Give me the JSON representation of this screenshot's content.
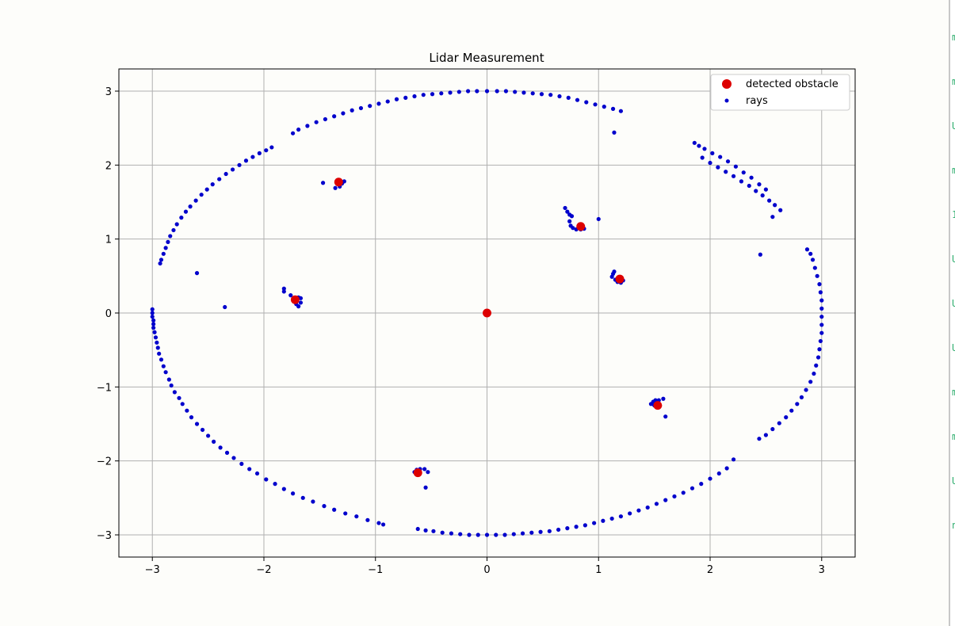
{
  "chart_data": {
    "type": "scatter",
    "title": "Lidar Measurement",
    "xlabel": "",
    "ylabel": "",
    "xlim": [
      -3.3,
      3.3
    ],
    "ylim": [
      -3.3,
      3.3
    ],
    "xticks": [
      -3,
      -2,
      -1,
      0,
      1,
      2,
      3
    ],
    "yticks": [
      -3,
      -2,
      -1,
      0,
      1,
      2,
      3
    ],
    "xtick_labels": [
      "−3",
      "−2",
      "−1",
      "0",
      "1",
      "2",
      "3"
    ],
    "ytick_labels": [
      "−3",
      "−2",
      "−1",
      "0",
      "1",
      "2",
      "3"
    ],
    "grid": true,
    "legend_position": "upper right",
    "series": [
      {
        "name": "detected obstacle",
        "color": "#dd0000",
        "marker": "large-circle",
        "points": [
          [
            0.0,
            0.0
          ],
          [
            -1.33,
            1.77
          ],
          [
            0.84,
            1.17
          ],
          [
            1.19,
            0.46
          ],
          [
            -1.72,
            0.18
          ],
          [
            1.53,
            -1.25
          ],
          [
            -0.62,
            -2.16
          ]
        ]
      },
      {
        "name": "rays",
        "color": "#0000cc",
        "marker": "small-circle",
        "points": [
          [
            -3.0,
            0.05
          ],
          [
            -3.0,
            0.0
          ],
          [
            -3.0,
            -0.05
          ],
          [
            -2.99,
            -0.1
          ],
          [
            -2.99,
            -0.15
          ],
          [
            -2.99,
            -0.2
          ],
          [
            -2.98,
            -0.26
          ],
          [
            -2.97,
            -0.33
          ],
          [
            -2.96,
            -0.4
          ],
          [
            -2.95,
            -0.47
          ],
          [
            -2.94,
            -0.55
          ],
          [
            -2.92,
            -0.63
          ],
          [
            -2.9,
            -0.72
          ],
          [
            -2.88,
            -0.8
          ],
          [
            -2.85,
            -0.9
          ],
          [
            -2.83,
            -0.98
          ],
          [
            -2.8,
            -1.07
          ],
          [
            -2.76,
            -1.15
          ],
          [
            -2.73,
            -1.23
          ],
          [
            -2.69,
            -1.32
          ],
          [
            -2.65,
            -1.41
          ],
          [
            -2.6,
            -1.5
          ],
          [
            -2.55,
            -1.58
          ],
          [
            -2.5,
            -1.66
          ],
          [
            -2.45,
            -1.74
          ],
          [
            -2.39,
            -1.82
          ],
          [
            -2.33,
            -1.89
          ],
          [
            -2.27,
            -1.96
          ],
          [
            -2.2,
            -2.04
          ],
          [
            -2.13,
            -2.11
          ],
          [
            -2.06,
            -2.17
          ],
          [
            -1.98,
            -2.25
          ],
          [
            -1.9,
            -2.31
          ],
          [
            -1.82,
            -2.38
          ],
          [
            -1.74,
            -2.44
          ],
          [
            -1.65,
            -2.5
          ],
          [
            -1.56,
            -2.55
          ],
          [
            -1.46,
            -2.61
          ],
          [
            -1.37,
            -2.66
          ],
          [
            -1.27,
            -2.71
          ],
          [
            -1.17,
            -2.75
          ],
          [
            -1.07,
            -2.8
          ],
          [
            -0.97,
            -2.84
          ],
          [
            -0.93,
            -2.86
          ],
          [
            -0.62,
            -2.92
          ],
          [
            -0.55,
            -2.94
          ],
          [
            -0.48,
            -2.95
          ],
          [
            -0.4,
            -2.97
          ],
          [
            -0.32,
            -2.98
          ],
          [
            -0.24,
            -2.99
          ],
          [
            -0.16,
            -3.0
          ],
          [
            -0.08,
            -3.0
          ],
          [
            0.0,
            -3.0
          ],
          [
            0.08,
            -3.0
          ],
          [
            0.16,
            -3.0
          ],
          [
            0.24,
            -2.99
          ],
          [
            0.32,
            -2.98
          ],
          [
            0.4,
            -2.97
          ],
          [
            0.48,
            -2.96
          ],
          [
            0.56,
            -2.95
          ],
          [
            0.64,
            -2.93
          ],
          [
            0.72,
            -2.91
          ],
          [
            0.8,
            -2.89
          ],
          [
            0.88,
            -2.87
          ],
          [
            0.96,
            -2.84
          ],
          [
            1.04,
            -2.81
          ],
          [
            1.12,
            -2.78
          ],
          [
            1.2,
            -2.75
          ],
          [
            1.28,
            -2.71
          ],
          [
            1.36,
            -2.67
          ],
          [
            1.44,
            -2.63
          ],
          [
            1.52,
            -2.58
          ],
          [
            1.6,
            -2.53
          ],
          [
            1.68,
            -2.48
          ],
          [
            1.76,
            -2.43
          ],
          [
            1.84,
            -2.37
          ],
          [
            1.92,
            -2.31
          ],
          [
            2.0,
            -2.24
          ],
          [
            2.08,
            -2.17
          ],
          [
            2.15,
            -2.1
          ],
          [
            2.21,
            -1.98
          ],
          [
            2.44,
            -1.7
          ],
          [
            2.5,
            -1.65
          ],
          [
            2.56,
            -1.57
          ],
          [
            2.62,
            -1.49
          ],
          [
            2.68,
            -1.41
          ],
          [
            2.73,
            -1.32
          ],
          [
            2.78,
            -1.23
          ],
          [
            2.82,
            -1.14
          ],
          [
            2.86,
            -1.04
          ],
          [
            2.9,
            -0.93
          ],
          [
            2.93,
            -0.82
          ],
          [
            2.95,
            -0.71
          ],
          [
            2.97,
            -0.6
          ],
          [
            2.98,
            -0.49
          ],
          [
            2.99,
            -0.38
          ],
          [
            3.0,
            -0.27
          ],
          [
            3.0,
            -0.16
          ],
          [
            3.0,
            -0.05
          ],
          [
            3.0,
            0.06
          ],
          [
            3.0,
            0.17
          ],
          [
            2.99,
            0.28
          ],
          [
            2.98,
            0.39
          ],
          [
            2.96,
            0.5
          ],
          [
            2.94,
            0.61
          ],
          [
            2.92,
            0.72
          ],
          [
            2.9,
            0.8
          ],
          [
            2.87,
            0.86
          ],
          [
            2.63,
            1.39
          ],
          [
            2.58,
            1.46
          ],
          [
            2.53,
            1.52
          ],
          [
            2.47,
            1.59
          ],
          [
            2.41,
            1.65
          ],
          [
            2.35,
            1.72
          ],
          [
            2.28,
            1.78
          ],
          [
            2.21,
            1.85
          ],
          [
            2.14,
            1.91
          ],
          [
            2.07,
            1.97
          ],
          [
            2.0,
            2.03
          ],
          [
            1.93,
            2.1
          ],
          [
            1.86,
            2.3
          ],
          [
            1.9,
            2.26
          ],
          [
            1.95,
            2.22
          ],
          [
            2.02,
            2.16
          ],
          [
            2.09,
            2.11
          ],
          [
            2.16,
            2.05
          ],
          [
            2.23,
            1.98
          ],
          [
            2.3,
            1.9
          ],
          [
            2.37,
            1.83
          ],
          [
            2.44,
            1.74
          ],
          [
            2.5,
            1.67
          ],
          [
            1.2,
            2.73
          ],
          [
            1.13,
            2.76
          ],
          [
            1.05,
            2.79
          ],
          [
            0.97,
            2.82
          ],
          [
            0.89,
            2.85
          ],
          [
            0.81,
            2.88
          ],
          [
            0.73,
            2.91
          ],
          [
            0.65,
            2.93
          ],
          [
            0.57,
            2.95
          ],
          [
            0.49,
            2.96
          ],
          [
            0.41,
            2.97
          ],
          [
            0.33,
            2.98
          ],
          [
            0.25,
            2.99
          ],
          [
            0.17,
            3.0
          ],
          [
            0.09,
            3.0
          ],
          [
            0.0,
            3.0
          ],
          [
            -0.09,
            3.0
          ],
          [
            -0.17,
            3.0
          ],
          [
            -0.25,
            2.99
          ],
          [
            -0.33,
            2.98
          ],
          [
            -0.41,
            2.97
          ],
          [
            -0.49,
            2.96
          ],
          [
            -0.57,
            2.95
          ],
          [
            -0.65,
            2.93
          ],
          [
            -0.73,
            2.91
          ],
          [
            -0.81,
            2.89
          ],
          [
            -0.89,
            2.86
          ],
          [
            -0.97,
            2.83
          ],
          [
            -1.05,
            2.8
          ],
          [
            -1.13,
            2.77
          ],
          [
            -1.21,
            2.74
          ],
          [
            -1.29,
            2.7
          ],
          [
            -1.37,
            2.66
          ],
          [
            -1.45,
            2.62
          ],
          [
            -1.53,
            2.58
          ],
          [
            -1.61,
            2.53
          ],
          [
            -1.69,
            2.48
          ],
          [
            -1.74,
            2.43
          ],
          [
            -1.93,
            2.24
          ],
          [
            -1.98,
            2.2
          ],
          [
            -2.04,
            2.16
          ],
          [
            -2.1,
            2.11
          ],
          [
            -2.16,
            2.06
          ],
          [
            -2.22,
            2.0
          ],
          [
            -2.28,
            1.94
          ],
          [
            -2.34,
            1.88
          ],
          [
            -2.4,
            1.81
          ],
          [
            -2.46,
            1.74
          ],
          [
            -2.51,
            1.67
          ],
          [
            -2.56,
            1.6
          ],
          [
            -2.61,
            1.52
          ],
          [
            -2.66,
            1.44
          ],
          [
            -2.7,
            1.37
          ],
          [
            -2.74,
            1.29
          ],
          [
            -2.78,
            1.2
          ],
          [
            -2.81,
            1.12
          ],
          [
            -2.84,
            1.04
          ],
          [
            -2.86,
            0.96
          ],
          [
            -2.88,
            0.88
          ],
          [
            -2.9,
            0.8
          ],
          [
            -2.92,
            0.72
          ],
          [
            -2.93,
            0.67
          ],
          [
            1.14,
            2.44
          ],
          [
            2.56,
            1.3
          ],
          [
            2.45,
            0.79
          ],
          [
            -2.6,
            0.54
          ],
          [
            -2.35,
            0.08
          ],
          [
            1.0,
            1.27
          ],
          [
            -1.47,
            1.76
          ],
          [
            -1.36,
            1.69
          ],
          [
            -1.32,
            1.71
          ],
          [
            -1.3,
            1.75
          ],
          [
            -1.28,
            1.78
          ],
          [
            -1.33,
            1.79
          ],
          [
            0.7,
            1.42
          ],
          [
            0.72,
            1.37
          ],
          [
            0.74,
            1.33
          ],
          [
            0.76,
            1.31
          ],
          [
            0.74,
            1.24
          ],
          [
            0.75,
            1.18
          ],
          [
            0.77,
            1.15
          ],
          [
            0.8,
            1.13
          ],
          [
            0.84,
            1.13
          ],
          [
            0.87,
            1.14
          ],
          [
            1.12,
            0.49
          ],
          [
            1.13,
            0.53
          ],
          [
            1.14,
            0.56
          ],
          [
            1.15,
            0.45
          ],
          [
            1.17,
            0.42
          ],
          [
            1.2,
            0.41
          ],
          [
            1.22,
            0.44
          ],
          [
            -1.82,
            0.33
          ],
          [
            -1.82,
            0.29
          ],
          [
            -1.76,
            0.24
          ],
          [
            -1.71,
            0.12
          ],
          [
            -1.69,
            0.09
          ],
          [
            -1.67,
            0.14
          ],
          [
            -1.67,
            0.2
          ],
          [
            -1.69,
            0.21
          ],
          [
            1.47,
            -1.23
          ],
          [
            1.49,
            -1.2
          ],
          [
            1.51,
            -1.18
          ],
          [
            1.54,
            -1.18
          ],
          [
            1.58,
            -1.16
          ],
          [
            1.6,
            -1.4
          ],
          [
            1.5,
            -1.25
          ],
          [
            -0.65,
            -2.15
          ],
          [
            -0.63,
            -2.12
          ],
          [
            -0.6,
            -2.11
          ],
          [
            -0.56,
            -2.11
          ],
          [
            -0.53,
            -2.15
          ],
          [
            -0.55,
            -2.36
          ]
        ]
      }
    ]
  },
  "right_strip_glyphs": [
    "m",
    "m",
    "U",
    "m",
    "1",
    "U",
    "U",
    "U",
    "m",
    "m",
    "U",
    "n"
  ]
}
